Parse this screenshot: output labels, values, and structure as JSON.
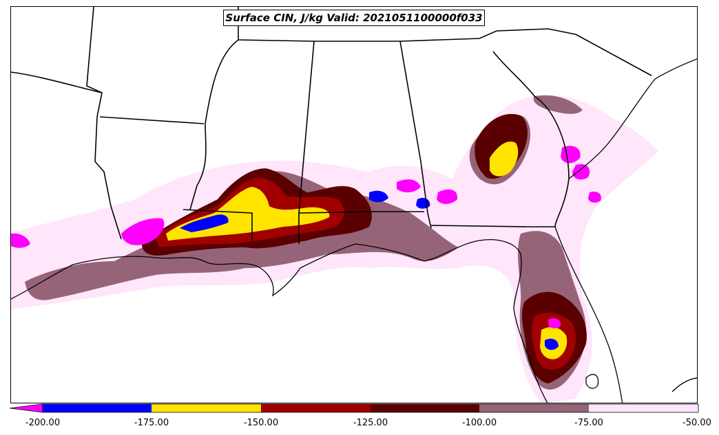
{
  "title": "Surface CIN, J/kg Valid: 2021051100000f033",
  "colorbar": {
    "min": -200,
    "max": -50,
    "extend": "min",
    "levels": [
      {
        "from": -200,
        "to": -175,
        "color": "#0000ff"
      },
      {
        "from": -175,
        "to": -150,
        "color": "#ffe400"
      },
      {
        "from": -150,
        "to": -125,
        "color": "#a00000"
      },
      {
        "from": -125,
        "to": -100,
        "color": "#5a0000"
      },
      {
        "from": -100,
        "to": -75,
        "color": "#966478"
      },
      {
        "from": -75,
        "to": -50,
        "color": "#ffe6fa"
      }
    ],
    "under_color": "#ff00ff",
    "tick_labels": [
      "-200.00",
      "-175.00",
      "-150.00",
      "-125.00",
      "-100.00",
      "-75.00",
      "-50.00"
    ]
  },
  "map": {
    "region": "Southeastern United States",
    "field": "Surface CIN",
    "units": "J/kg"
  }
}
